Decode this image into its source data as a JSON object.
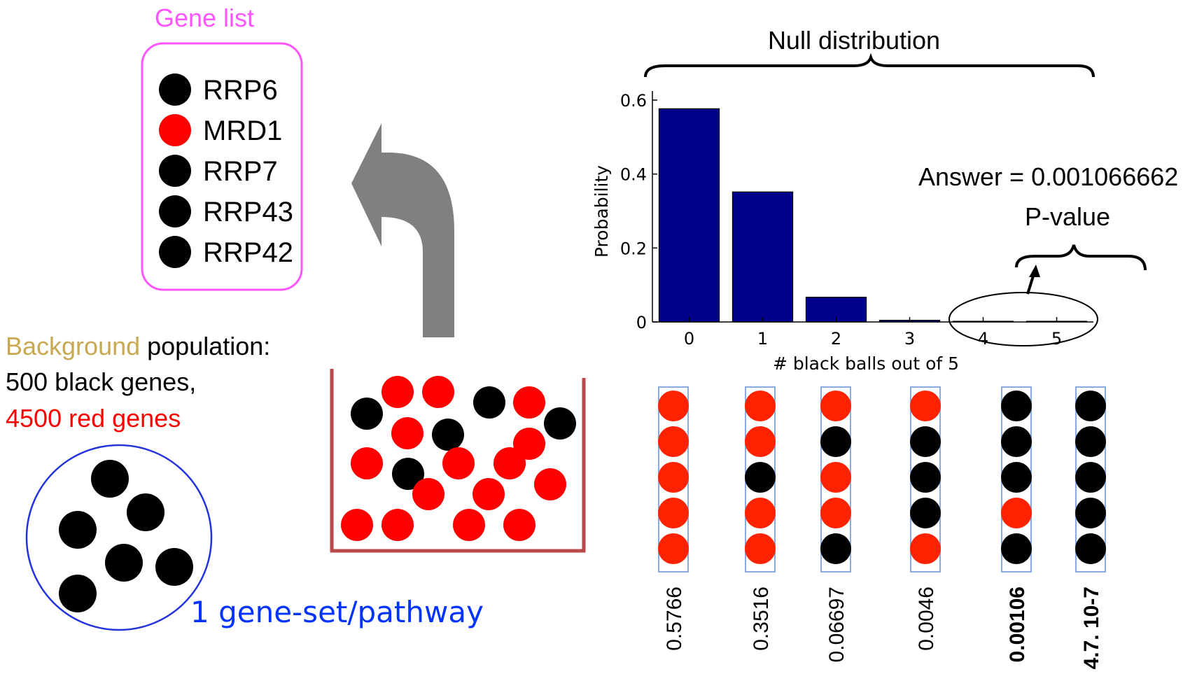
{
  "gene_list": {
    "title": "Gene list",
    "genes": [
      {
        "name": "RRP6",
        "color": "#000000"
      },
      {
        "name": "MRD1",
        "color": "#ff0000"
      },
      {
        "name": "RRP7",
        "color": "#000000"
      },
      {
        "name": "RRP43",
        "color": "#000000"
      },
      {
        "name": "RRP42",
        "color": "#000000"
      }
    ]
  },
  "background": {
    "word": "Background",
    "rest": " population:",
    "black_line": "500 black genes,",
    "red_line": "4500 red genes"
  },
  "gene_set_label": "1 gene-set/pathway",
  "null_distribution_label": "Null distribution",
  "answer": {
    "text": "Answer = 0.001066662",
    "pvalue_label": "P-value"
  },
  "chart_data": {
    "type": "bar",
    "categories": [
      "0",
      "1",
      "2",
      "3",
      "4",
      "5"
    ],
    "values": [
      0.5766,
      0.3516,
      0.06697,
      0.0046,
      0.00106,
      4.7e-07
    ],
    "xlabel": "# black balls out of 5",
    "ylabel": "Probability",
    "ylim": [
      0,
      0.6
    ],
    "yticks": [
      "0",
      "0.2",
      "0.4",
      "0.6"
    ],
    "bar_color": "#00008b"
  },
  "outcomes": [
    {
      "balls": [
        "red",
        "red",
        "red",
        "red",
        "red"
      ],
      "prob_label": "0.5766",
      "bold": false
    },
    {
      "balls": [
        "red",
        "red",
        "black",
        "red",
        "red"
      ],
      "prob_label": "0.3516",
      "bold": false
    },
    {
      "balls": [
        "red",
        "black",
        "red",
        "red",
        "black"
      ],
      "prob_label": "0.06697",
      "bold": false
    },
    {
      "balls": [
        "red",
        "black",
        "black",
        "black",
        "red"
      ],
      "prob_label": "0.0046",
      "bold": false
    },
    {
      "balls": [
        "black",
        "black",
        "black",
        "red",
        "black"
      ],
      "prob_label": "0.00106",
      "bold": true
    },
    {
      "balls": [
        "black",
        "black",
        "black",
        "black",
        "black"
      ],
      "prob_label": "4.7. 10-7",
      "bold": true
    }
  ],
  "colors": {
    "gene_list_border": "#ff55ff",
    "background_word": "#c8a850",
    "red_text": "#ff0000",
    "blue_text": "#0033ff",
    "gene_set_circle": "#2233dd",
    "urn": "#b84a4a",
    "arrow": "#808080",
    "ball_red": "#ff2200",
    "ball_black": "#000000",
    "column_border": "#88aadd"
  }
}
